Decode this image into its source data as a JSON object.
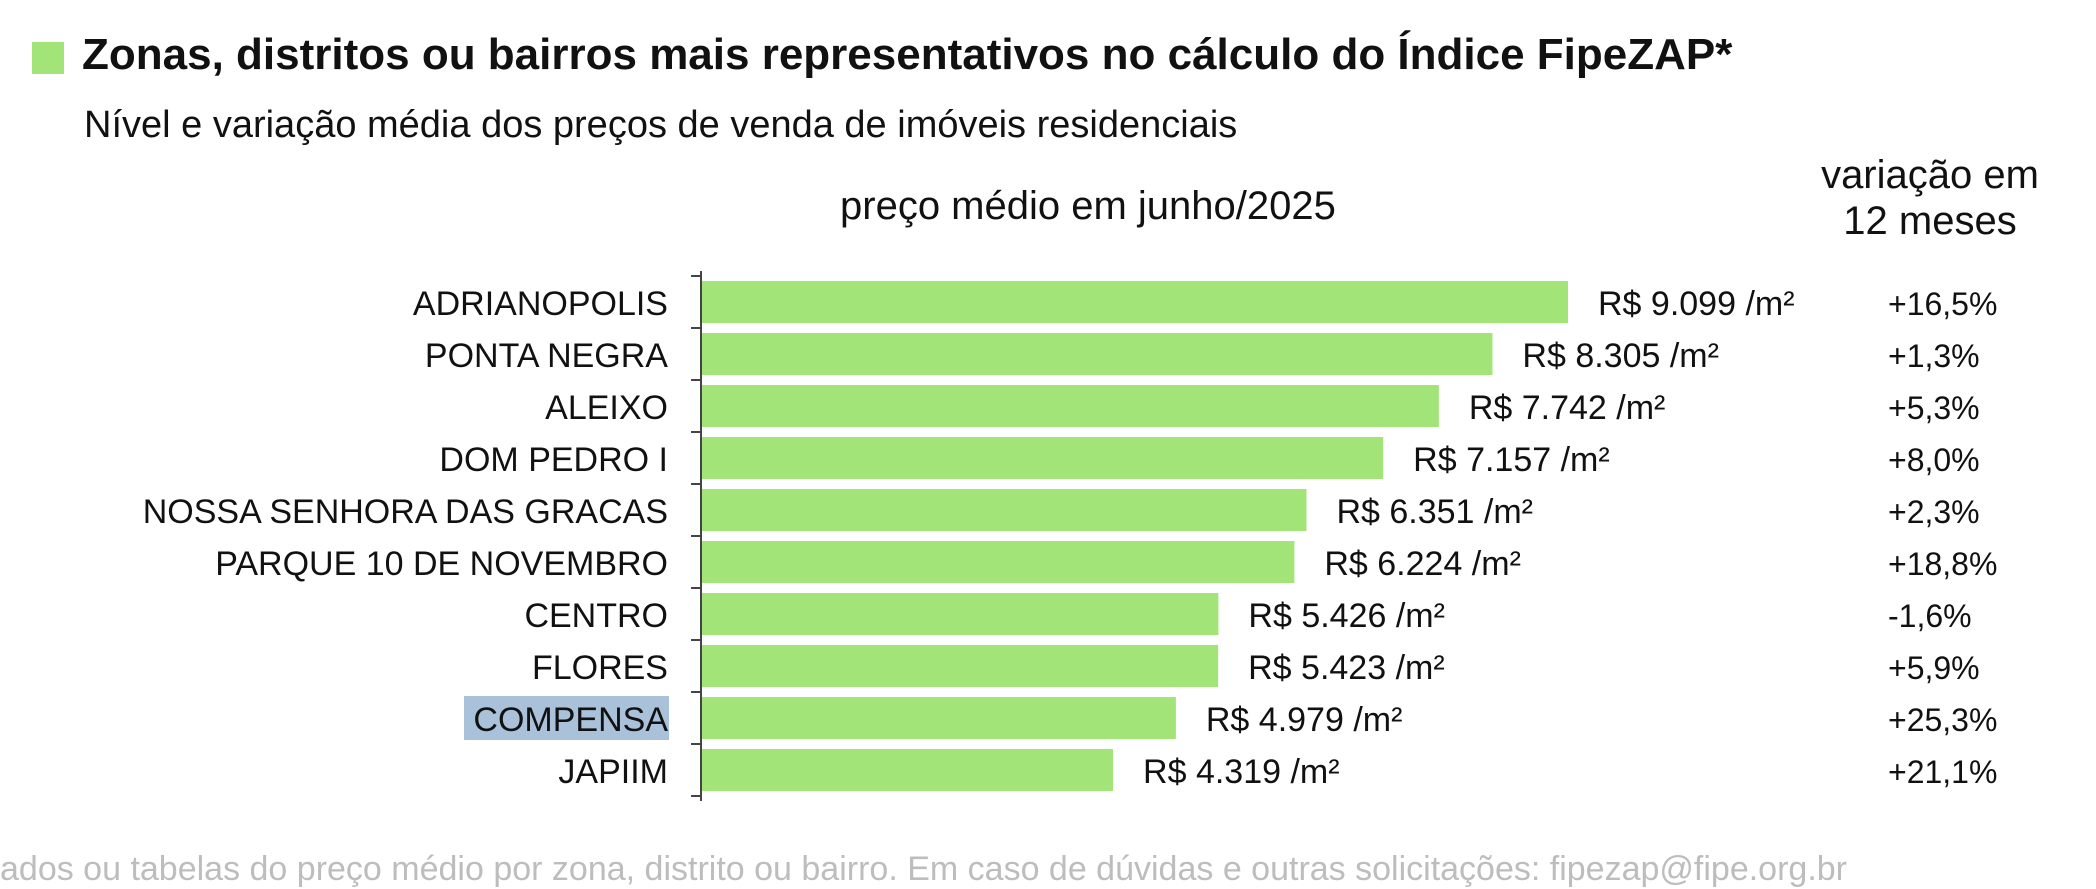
{
  "title": "Zonas, distritos ou bairros mais representativos no cálculo do Índice FipeZAP*",
  "subtitle": "Nível e variação média dos preços de venda de imóveis residenciais",
  "colors": {
    "bar": "#a2e478",
    "accent": "#a2e478",
    "highlight": "#a9c1d9"
  },
  "footnote": "ados ou tabelas do preço médio por zona, distrito ou bairro. Em caso de dúvidas e outras solicitações: fipezap@fipe.org.br",
  "chart_data": {
    "type": "bar",
    "orientation": "horizontal",
    "price_header": "preço médio em junho/2025",
    "variation_header_line1": "variação em",
    "variation_header_line2": "12 meses",
    "highlighted_category": "COMPENSA",
    "xlim": [
      0,
      9099
    ],
    "categories": [
      "ADRIANOPOLIS",
      "PONTA NEGRA",
      "ALEIXO",
      "DOM PEDRO I",
      "NOSSA SENHORA DAS GRACAS",
      "PARQUE 10 DE NOVEMBRO",
      "CENTRO",
      "FLORES",
      "COMPENSA",
      "JAPIIM"
    ],
    "values": [
      9099,
      8305,
      7742,
      7157,
      6351,
      6224,
      5426,
      5423,
      4979,
      4319
    ],
    "value_labels": [
      "R$ 9.099 /m²",
      "R$ 8.305 /m²",
      "R$ 7.742 /m²",
      "R$ 7.157 /m²",
      "R$ 6.351 /m²",
      "R$ 6.224 /m²",
      "R$ 5.426 /m²",
      "R$ 5.423 /m²",
      "R$ 4.979 /m²",
      "R$ 4.319 /m²"
    ],
    "variation_labels": [
      "+16,5%",
      "+1,3%",
      "+5,3%",
      "+8,0%",
      "+2,3%",
      "+18,8%",
      "-1,6%",
      "+5,9%",
      "+25,3%",
      "+21,1%"
    ]
  }
}
